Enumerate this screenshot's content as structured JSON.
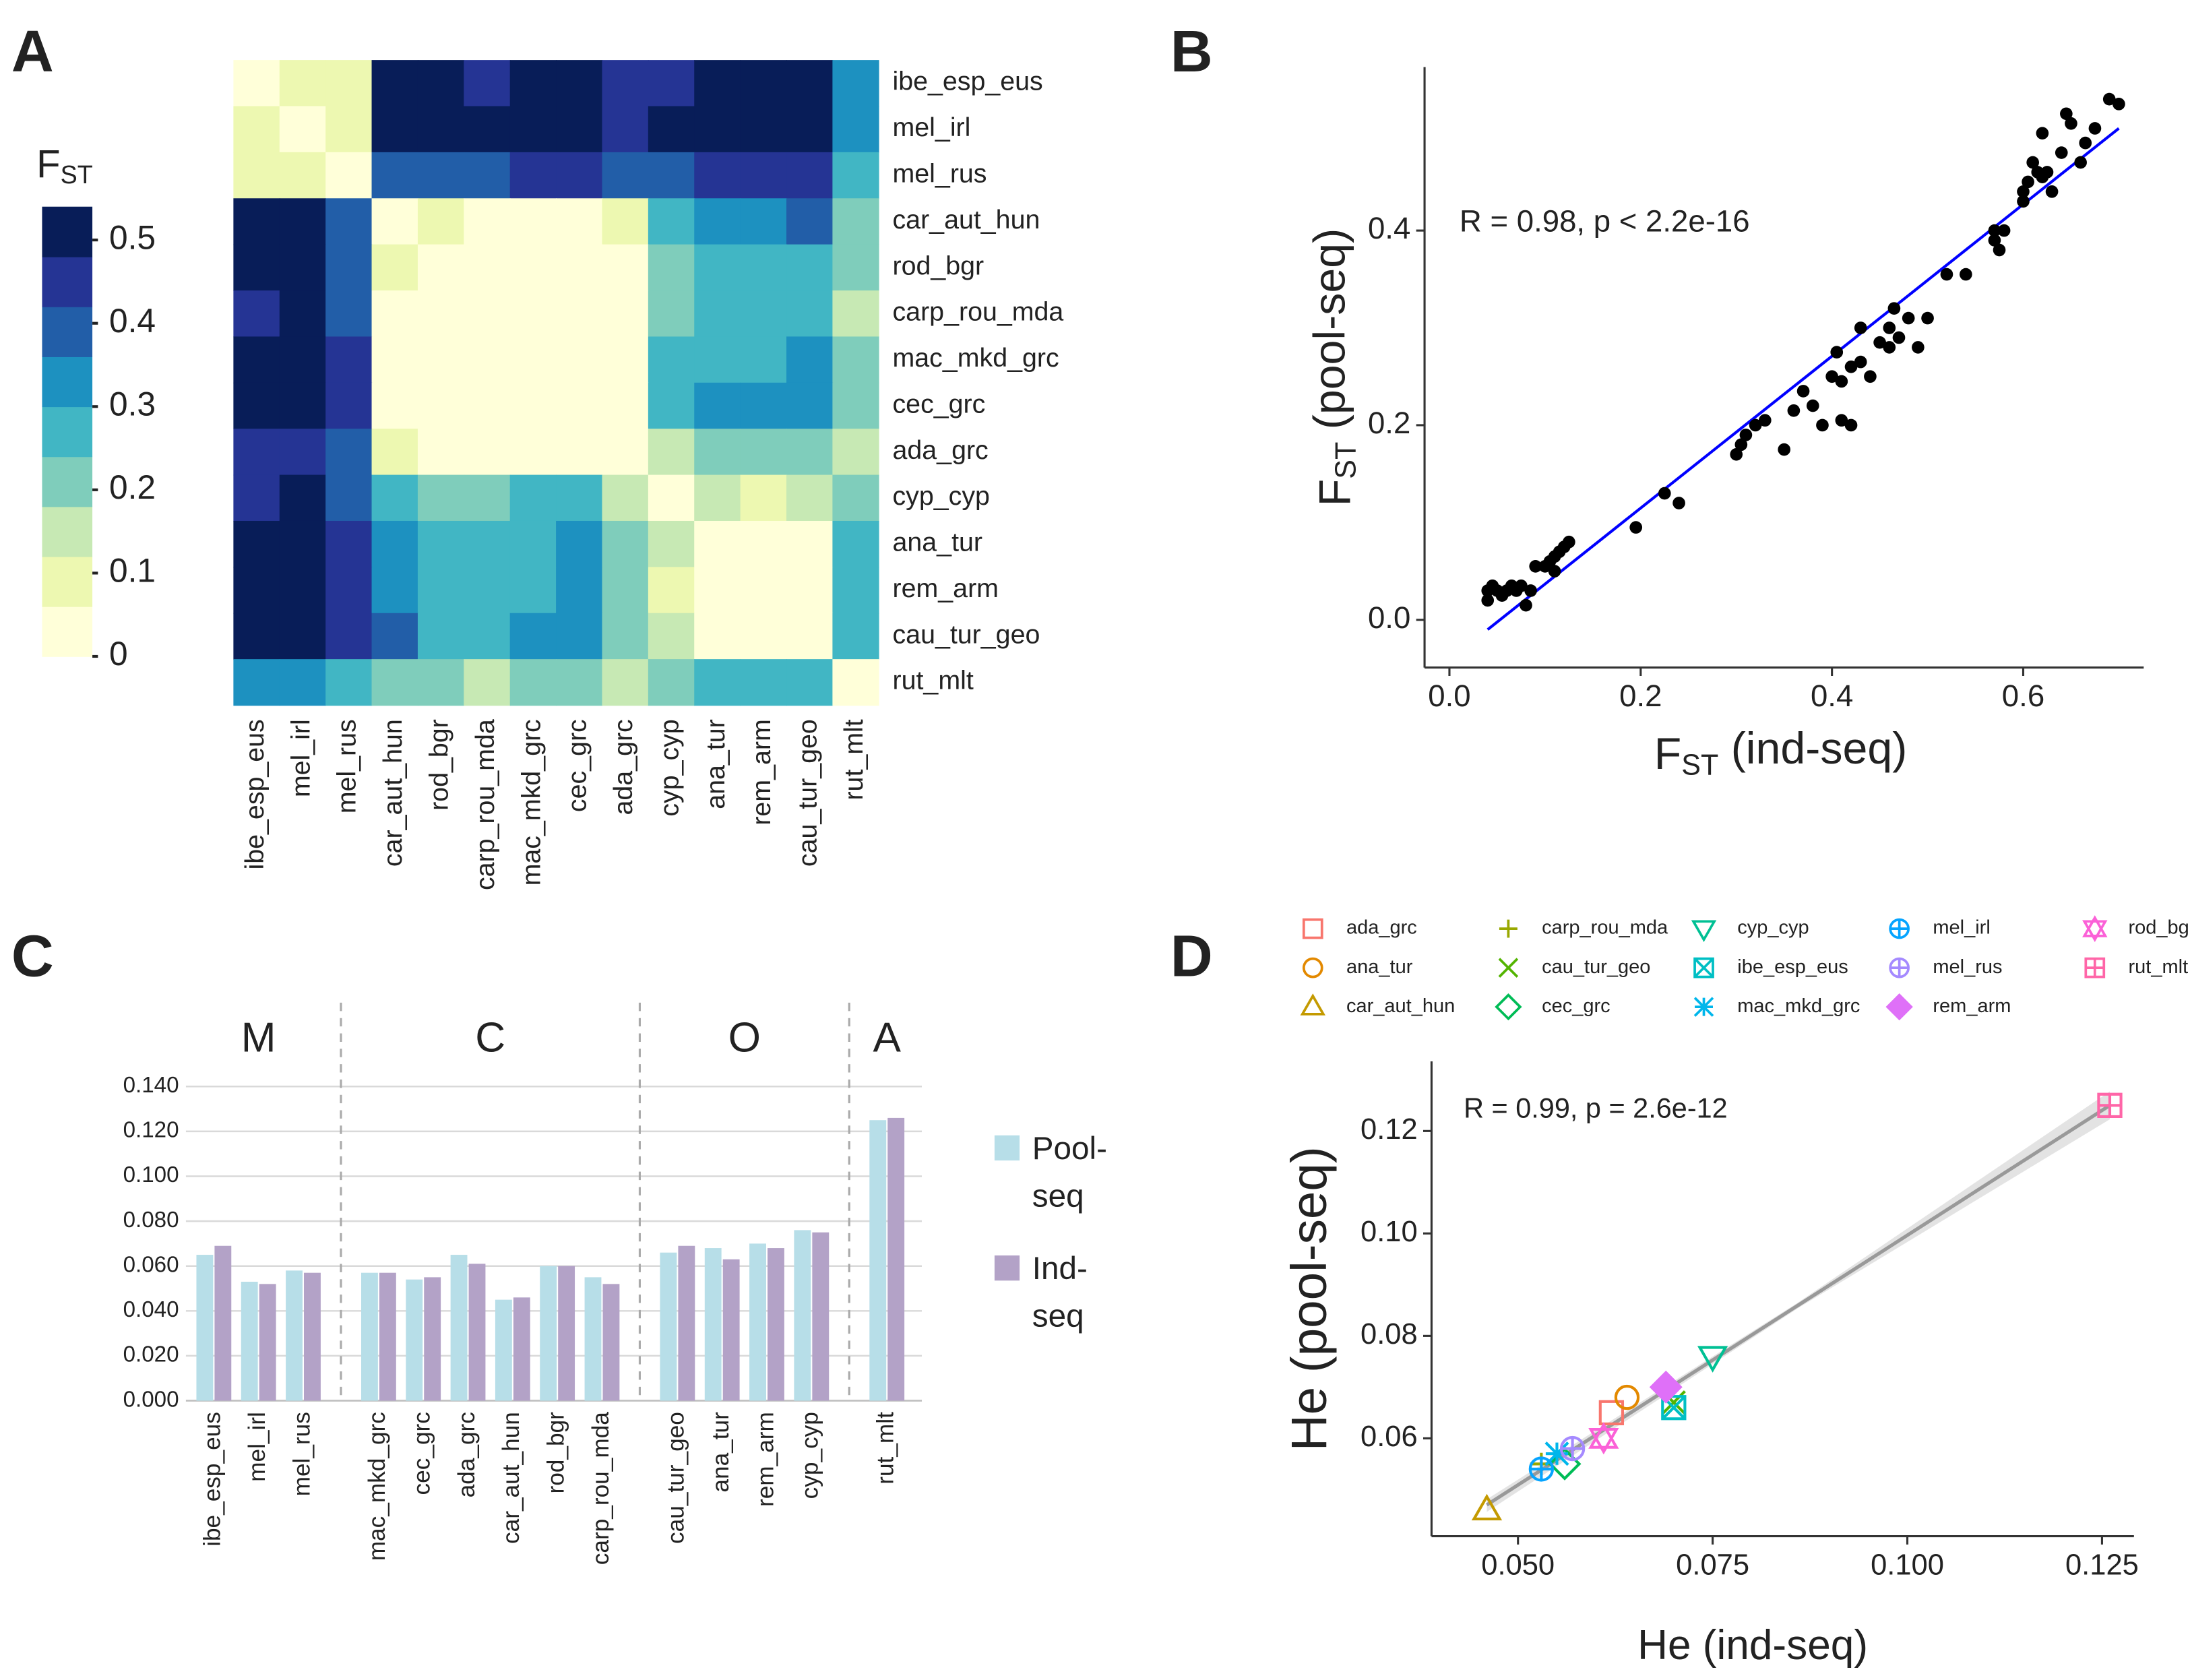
{
  "chart_data": [
    {
      "type": "heatmap",
      "panel_label": "A",
      "colorbar_title": [
        "F",
        "ST"
      ],
      "rows": [
        "ibe_esp_eus",
        "mel_irl",
        "mel_rus",
        "car_aut_hun",
        "rod_bgr",
        "carp_rou_mda",
        "mac_mkd_grc",
        "cec_grc",
        "ada_grc",
        "cyp_cyp",
        "ana_tur",
        "rem_arm",
        "cau_tur_geo",
        "rut_mlt"
      ],
      "columns": [
        "ibe_esp_eus",
        "mel_irl",
        "mel_rus",
        "car_aut_hun",
        "rod_bgr",
        "carp_rou_mda",
        "mac_mkd_grc",
        "cec_grc",
        "ada_grc",
        "cyp_cyp",
        "ana_tur",
        "rem_arm",
        "cau_tur_geo",
        "rut_mlt"
      ],
      "z": [
        [
          0.03,
          0.09,
          0.09,
          0.51,
          0.51,
          0.45,
          0.51,
          0.51,
          0.45,
          0.45,
          0.51,
          0.51,
          0.51,
          0.33
        ],
        [
          0.09,
          0.03,
          0.09,
          0.51,
          0.51,
          0.51,
          0.51,
          0.51,
          0.45,
          0.51,
          0.51,
          0.51,
          0.51,
          0.33
        ],
        [
          0.09,
          0.09,
          0.03,
          0.39,
          0.39,
          0.39,
          0.45,
          0.45,
          0.39,
          0.39,
          0.45,
          0.45,
          0.45,
          0.27
        ],
        [
          0.51,
          0.51,
          0.39,
          0.03,
          0.09,
          0.03,
          0.03,
          0.03,
          0.09,
          0.27,
          0.33,
          0.33,
          0.39,
          0.21
        ],
        [
          0.51,
          0.51,
          0.39,
          0.09,
          0.03,
          0.03,
          0.03,
          0.03,
          0.03,
          0.21,
          0.27,
          0.27,
          0.27,
          0.21
        ],
        [
          0.45,
          0.51,
          0.39,
          0.03,
          0.03,
          0.03,
          0.03,
          0.03,
          0.03,
          0.21,
          0.27,
          0.27,
          0.27,
          0.15
        ],
        [
          0.51,
          0.51,
          0.45,
          0.03,
          0.03,
          0.03,
          0.03,
          0.03,
          0.03,
          0.27,
          0.27,
          0.27,
          0.33,
          0.21
        ],
        [
          0.51,
          0.51,
          0.45,
          0.03,
          0.03,
          0.03,
          0.03,
          0.03,
          0.03,
          0.27,
          0.33,
          0.33,
          0.33,
          0.21
        ],
        [
          0.45,
          0.45,
          0.39,
          0.09,
          0.03,
          0.03,
          0.03,
          0.03,
          0.03,
          0.15,
          0.21,
          0.21,
          0.21,
          0.15
        ],
        [
          0.45,
          0.51,
          0.39,
          0.27,
          0.21,
          0.21,
          0.27,
          0.27,
          0.15,
          0.03,
          0.15,
          0.09,
          0.15,
          0.21
        ],
        [
          0.51,
          0.51,
          0.45,
          0.33,
          0.27,
          0.27,
          0.27,
          0.33,
          0.21,
          0.15,
          0.03,
          0.03,
          0.03,
          0.27
        ],
        [
          0.51,
          0.51,
          0.45,
          0.33,
          0.27,
          0.27,
          0.27,
          0.33,
          0.21,
          0.09,
          0.03,
          0.03,
          0.03,
          0.27
        ],
        [
          0.51,
          0.51,
          0.45,
          0.39,
          0.27,
          0.27,
          0.33,
          0.33,
          0.21,
          0.15,
          0.03,
          0.03,
          0.03,
          0.27
        ],
        [
          0.33,
          0.33,
          0.27,
          0.21,
          0.21,
          0.15,
          0.21,
          0.21,
          0.15,
          0.21,
          0.27,
          0.27,
          0.27,
          0.03
        ]
      ],
      "colors": [
        "#ffffd9",
        "#edf8b1",
        "#c7e9b4",
        "#7fcdbb",
        "#41b6c4",
        "#1d91c0",
        "#225ea8",
        "#253494",
        "#081d58"
      ],
      "zlim": [
        0,
        0.54
      ],
      "zticks": [
        0,
        0.1,
        0.2,
        0.3,
        0.4,
        0.5
      ]
    },
    {
      "type": "scatter",
      "panel_label": "B",
      "annotation": "R = 0.98, p < 2.2e-16",
      "x_label": [
        "F",
        "ST",
        " (ind-seq)"
      ],
      "y_label": [
        "F",
        "ST",
        " (pool-seq)"
      ],
      "x": [
        0.04,
        0.04,
        0.045,
        0.05,
        0.055,
        0.06,
        0.065,
        0.07,
        0.075,
        0.08,
        0.085,
        0.09,
        0.1,
        0.105,
        0.11,
        0.115,
        0.12,
        0.125,
        0.11,
        0.195,
        0.225,
        0.24,
        0.3,
        0.305,
        0.31,
        0.32,
        0.33,
        0.35,
        0.36,
        0.37,
        0.38,
        0.39,
        0.4,
        0.405,
        0.41,
        0.41,
        0.42,
        0.42,
        0.43,
        0.43,
        0.44,
        0.45,
        0.46,
        0.46,
        0.465,
        0.47,
        0.48,
        0.49,
        0.5,
        0.52,
        0.54,
        0.57,
        0.575,
        0.58,
        0.6,
        0.605,
        0.61,
        0.615,
        0.62,
        0.625,
        0.63,
        0.64,
        0.645,
        0.65,
        0.66,
        0.665,
        0.675,
        0.69,
        0.7,
        0.62,
        0.6,
        0.57
      ],
      "values": [
        0.02,
        0.03,
        0.035,
        0.03,
        0.025,
        0.03,
        0.035,
        0.03,
        0.035,
        0.015,
        0.03,
        0.055,
        0.055,
        0.06,
        0.065,
        0.07,
        0.075,
        0.08,
        0.05,
        0.095,
        0.13,
        0.12,
        0.17,
        0.18,
        0.19,
        0.2,
        0.205,
        0.175,
        0.215,
        0.235,
        0.22,
        0.2,
        0.25,
        0.275,
        0.245,
        0.205,
        0.26,
        0.2,
        0.265,
        0.3,
        0.25,
        0.285,
        0.3,
        0.28,
        0.32,
        0.29,
        0.31,
        0.28,
        0.31,
        0.355,
        0.355,
        0.39,
        0.38,
        0.4,
        0.44,
        0.45,
        0.47,
        0.46,
        0.5,
        0.46,
        0.44,
        0.48,
        0.52,
        0.51,
        0.47,
        0.49,
        0.505,
        0.535,
        0.53,
        0.455,
        0.43,
        0.4
      ],
      "color": "#000000",
      "fit": {
        "x": [
          0.04,
          0.7
        ],
        "values": [
          -0.01,
          0.505
        ],
        "color": "#0000ff"
      },
      "xlim": [
        -0.026,
        0.726
      ],
      "ylim": [
        -0.049,
        0.568
      ],
      "xticks": [
        {
          "value": 0,
          "label": "0.0"
        },
        0.2,
        0.4,
        0.6
      ],
      "yticks": [
        {
          "value": 0,
          "label": "0.0"
        },
        0.2,
        0.4
      ]
    },
    {
      "type": "bar",
      "panel_label": "C",
      "groups": [
        {
          "label": "M",
          "categories": [
            "ibe_esp_eus",
            "mel_irl",
            "mel_rus"
          ]
        },
        {
          "label": "C",
          "categories": [
            "mac_mkd_grc",
            "cec_grc",
            "ada_grc",
            "car_aut_hun",
            "rod_bgr",
            "carp_rou_mda"
          ]
        },
        {
          "label": "O",
          "categories": [
            "cau_tur_geo",
            "ana_tur",
            "rem_arm",
            "cyp_cyp"
          ]
        },
        {
          "label": "A",
          "categories": [
            "rut_mlt"
          ]
        }
      ],
      "series": [
        {
          "name": "Pool-seq",
          "color": "#b7dee8",
          "values": [
            0.065,
            0.053,
            0.058,
            0.057,
            0.054,
            0.065,
            0.045,
            0.06,
            0.055,
            0.066,
            0.068,
            0.07,
            0.076,
            0.125
          ]
        },
        {
          "name": "Ind-seq",
          "color": "#b3a2c7",
          "values": [
            0.069,
            0.052,
            0.057,
            0.057,
            0.055,
            0.061,
            0.046,
            0.06,
            0.052,
            0.069,
            0.063,
            0.068,
            0.075,
            0.126
          ]
        }
      ],
      "ylim": [
        0,
        0.14
      ],
      "yticks": [
        {
          "value": 0,
          "label": "0.000"
        },
        {
          "value": 0.02,
          "label": "0.020"
        },
        {
          "value": 0.04,
          "label": "0.040"
        },
        {
          "value": 0.06,
          "label": "0.060"
        },
        {
          "value": 0.08,
          "label": "0.080"
        },
        {
          "value": 0.1,
          "label": "0.100"
        },
        {
          "value": 0.12,
          "label": "0.120"
        },
        {
          "value": 0.14,
          "label": "0.140"
        }
      ],
      "grid": true
    },
    {
      "type": "scatter",
      "panel_label": "D",
      "annotation": "R = 0.99, p = 2.6e-12",
      "x_label": "He (ind-seq)",
      "y_label": "He (pool-seq)",
      "series": [
        {
          "name": "ada_grc",
          "color": "#f8766d",
          "marker": "square",
          "x": [
            0.062
          ],
          "values": [
            0.065
          ]
        },
        {
          "name": "ana_tur",
          "color": "#e38900",
          "marker": "circle",
          "x": [
            0.064
          ],
          "values": [
            0.068
          ]
        },
        {
          "name": "car_aut_hun",
          "color": "#c49a00",
          "marker": "triangle-up",
          "x": [
            0.046
          ],
          "values": [
            0.046
          ]
        },
        {
          "name": "carp_rou_mda",
          "color": "#99a800",
          "marker": "plus",
          "x": [
            0.053
          ],
          "values": [
            0.055
          ]
        },
        {
          "name": "cau_tur_geo",
          "color": "#53b400",
          "marker": "cross",
          "x": [
            0.07
          ],
          "values": [
            0.067
          ]
        },
        {
          "name": "cec_grc",
          "color": "#00bc56",
          "marker": "diamond",
          "x": [
            0.056
          ],
          "values": [
            0.055
          ]
        },
        {
          "name": "cyp_cyp",
          "color": "#00c094",
          "marker": "triangle-down",
          "x": [
            0.075
          ],
          "values": [
            0.076
          ]
        },
        {
          "name": "ibe_esp_eus",
          "color": "#00bfc4",
          "marker": "square-cross",
          "x": [
            0.07
          ],
          "values": [
            0.066
          ]
        },
        {
          "name": "mac_mkd_grc",
          "color": "#00b6eb",
          "marker": "asterisk",
          "x": [
            0.055
          ],
          "values": [
            0.057
          ]
        },
        {
          "name": "mel_irl",
          "color": "#06a4ff",
          "marker": "circle-plus",
          "x": [
            0.053
          ],
          "values": [
            0.054
          ]
        },
        {
          "name": "mel_rus",
          "color": "#a58aff",
          "marker": "circle-plus",
          "x": [
            0.057
          ],
          "values": [
            0.058
          ]
        },
        {
          "name": "rem_arm",
          "color": "#df70f8",
          "marker": "diamond-filled",
          "x": [
            0.069
          ],
          "values": [
            0.07
          ]
        },
        {
          "name": "rod_bgr",
          "color": "#fb61d7",
          "marker": "star",
          "x": [
            0.061
          ],
          "values": [
            0.06
          ]
        },
        {
          "name": "rut_mlt",
          "color": "#ff66a8",
          "marker": "square-plus",
          "x": [
            0.126
          ],
          "values": [
            0.125
          ]
        }
      ],
      "fit": {
        "x": [
          0.046,
          0.126
        ],
        "values": [
          0.047,
          0.125
        ],
        "color": "#999999"
      },
      "xlim": [
        0.0389,
        0.1291
      ],
      "ylim": [
        0.0409,
        0.1336
      ],
      "xticks": [
        {
          "value": 0.05,
          "label": "0.050"
        },
        {
          "value": 0.075,
          "label": "0.075"
        },
        {
          "value": 0.1,
          "label": "0.100"
        },
        {
          "value": 0.125,
          "label": "0.125"
        }
      ],
      "yticks": [
        0.06,
        0.08,
        {
          "value": 0.1,
          "label": "0.10"
        },
        0.12
      ]
    }
  ]
}
